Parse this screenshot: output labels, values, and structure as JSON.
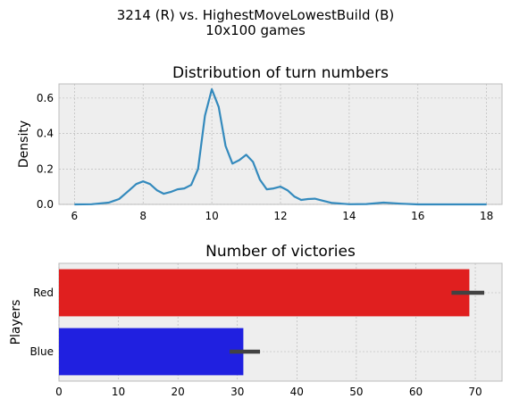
{
  "figure": {
    "suptitle_line1": "3214 (R) vs. HighestMoveLowestBuild (B)",
    "suptitle_line2": "10x100 games"
  },
  "chart_data": [
    {
      "type": "line",
      "title": "Distribution of turn numbers",
      "xlabel": "",
      "ylabel": "Density",
      "xlim": [
        5.55,
        18.45
      ],
      "ylim": [
        0,
        0.68
      ],
      "xticks": [
        6,
        8,
        10,
        12,
        14,
        16,
        18
      ],
      "yticks": [
        0.0,
        0.2,
        0.4,
        0.6
      ],
      "grid": true,
      "series": [
        {
          "color": "#348abd",
          "x": [
            6.0,
            6.5,
            7.0,
            7.3,
            7.6,
            7.8,
            8.0,
            8.2,
            8.4,
            8.6,
            8.8,
            9.0,
            9.2,
            9.4,
            9.6,
            9.8,
            10.0,
            10.2,
            10.4,
            10.6,
            10.8,
            11.0,
            11.2,
            11.4,
            11.6,
            11.8,
            12.0,
            12.2,
            12.4,
            12.6,
            12.8,
            13.0,
            13.2,
            13.5,
            14.0,
            14.5,
            15.0,
            15.5,
            16.0,
            17.0,
            18.0
          ],
          "y": [
            0.0,
            0.001,
            0.01,
            0.03,
            0.08,
            0.115,
            0.13,
            0.115,
            0.08,
            0.06,
            0.07,
            0.085,
            0.09,
            0.11,
            0.2,
            0.5,
            0.65,
            0.55,
            0.33,
            0.23,
            0.25,
            0.28,
            0.24,
            0.14,
            0.085,
            0.09,
            0.1,
            0.08,
            0.045,
            0.025,
            0.03,
            0.032,
            0.022,
            0.008,
            0.001,
            0.002,
            0.01,
            0.004,
            0.0,
            0.0,
            0.0
          ]
        }
      ]
    },
    {
      "type": "bar",
      "orientation": "horizontal",
      "title": "Number of victories",
      "xlabel": "",
      "ylabel": "Players",
      "xlim": [
        0,
        74.5
      ],
      "xticks": [
        0,
        10,
        20,
        30,
        40,
        50,
        60,
        70
      ],
      "grid": true,
      "categories": [
        "Red",
        "Blue"
      ],
      "values": [
        69,
        31
      ],
      "errors": [
        [
          66,
          71.5
        ],
        [
          28.7,
          33.8
        ]
      ],
      "colors": [
        "#e01f1f",
        "#2020e0"
      ]
    }
  ]
}
